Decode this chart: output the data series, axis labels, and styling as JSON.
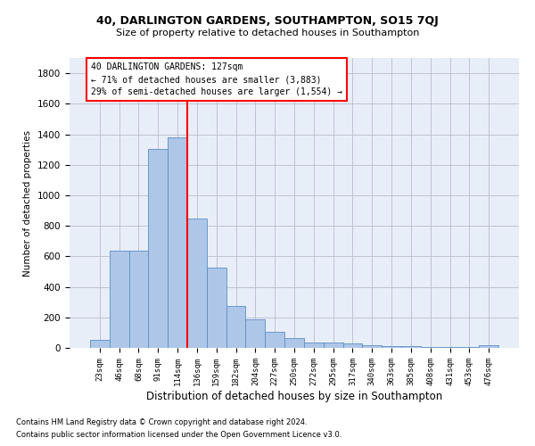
{
  "title": "40, DARLINGTON GARDENS, SOUTHAMPTON, SO15 7QJ",
  "subtitle": "Size of property relative to detached houses in Southampton",
  "xlabel": "Distribution of detached houses by size in Southampton",
  "ylabel": "Number of detached properties",
  "categories": [
    "23sqm",
    "46sqm",
    "68sqm",
    "91sqm",
    "114sqm",
    "136sqm",
    "159sqm",
    "182sqm",
    "204sqm",
    "227sqm",
    "250sqm",
    "272sqm",
    "295sqm",
    "317sqm",
    "340sqm",
    "363sqm",
    "385sqm",
    "408sqm",
    "431sqm",
    "453sqm",
    "476sqm"
  ],
  "values": [
    50,
    638,
    638,
    1305,
    1380,
    848,
    525,
    275,
    185,
    105,
    65,
    38,
    38,
    30,
    20,
    10,
    10,
    5,
    5,
    3,
    15
  ],
  "bar_color": "#aec6e8",
  "bar_edge_color": "#5a8fc4",
  "background_color": "#e8eef8",
  "grid_color": "#bbbbcc",
  "annotation_title": "40 DARLINGTON GARDENS: 127sqm",
  "annotation_line1": "← 71% of detached houses are smaller (3,883)",
  "annotation_line2": "29% of semi-detached houses are larger (1,554) →",
  "vline_x": 4.5,
  "ylim": [
    0,
    1900
  ],
  "yticks": [
    0,
    200,
    400,
    600,
    800,
    1000,
    1200,
    1400,
    1600,
    1800
  ],
  "footnote1": "Contains HM Land Registry data © Crown copyright and database right 2024.",
  "footnote2": "Contains public sector information licensed under the Open Government Licence v3.0."
}
